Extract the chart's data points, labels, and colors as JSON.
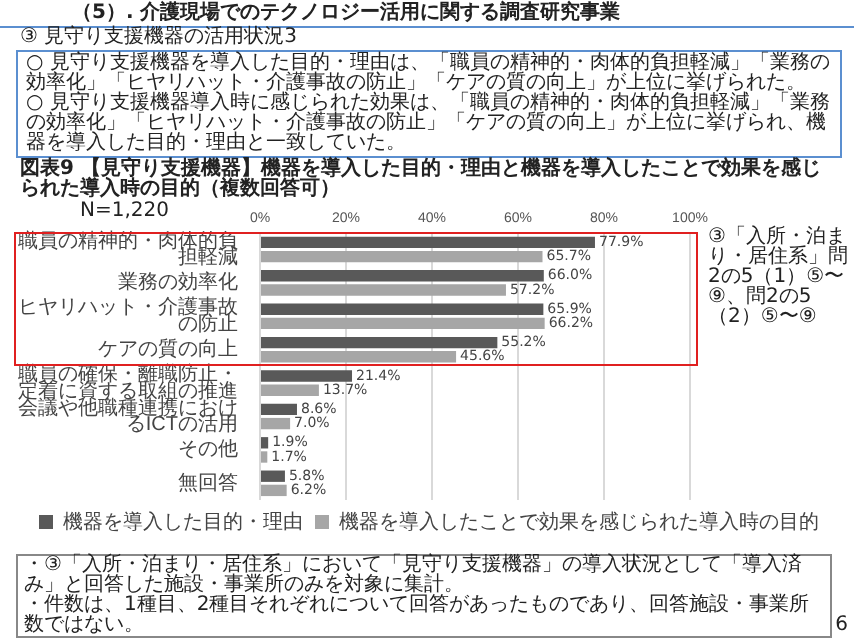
{
  "chart_data": {
    "type": "bar",
    "orientation": "horizontal",
    "title": "図表9 【見守り支援機器】機器を導入した目的・理由と機器を導入したことで効果を感じられた導入時の目的（複数回答可）",
    "annotations": [
      "（5）. 介護現場でのテクノロジー活用に関する調査研究事業",
      "③ 見守り支援機器の活用状況3",
      "○ 見守り支援機器を導入した目的・理由は、「職員の精神的・肉体的負担軽減」「業務の効率化」「ヒヤリハット・介護事故の防止」「ケアの質の向上」が上位に挙げられた。",
      "○ 見守り支援機器導入時に感じられた効果は、「職員の精神的・肉体的負担軽減」「業務の効率化」「ヒヤリハット・介護事故の防止」「ケアの質の向上」が上位に挙げられ、機器を導入した目的・理由と一致していた。",
      "N=1,220",
      "③「入所・泊まり・居住系」問2の5（1）⑤〜⑨、問2の5（2）⑤〜⑨",
      "・③「入所・泊まり・居住系」において「見守り支援機器」の導入状況として「導入済み」と回答した施設・事業所のみを対象に集計。",
      "・件数は、1種目、2種目それぞれについて回答があったものであり、回答施設・事業所数ではない。",
      "6"
    ],
    "categories": [
      "職員の精神的・肉体的負担軽減",
      "業務の効率化",
      "ヒヤリハット・介護事故の防止",
      "ケアの質の向上",
      "職員の確保・離職防止・定着に資する取組の推進",
      "会議や他職種連携におけるICTの活用",
      "その他",
      "無回答"
    ],
    "series": [
      {
        "name": "機器を導入した目的・理由",
        "color": "#595959",
        "values": [
          77.9,
          66.0,
          65.9,
          55.2,
          21.4,
          8.6,
          1.9,
          5.8
        ],
        "value_labels": [
          "77.9%",
          "66.0%",
          "65.9%",
          "55.2%",
          "21.4%",
          "8.6%",
          "1.9%",
          "5.8%"
        ]
      },
      {
        "name": "機器を導入したことで効果を感じられた導入時の目的",
        "color": "#a6a6a6",
        "values": [
          65.7,
          57.2,
          66.2,
          45.6,
          13.7,
          7.0,
          1.7,
          6.2
        ],
        "value_labels": [
          "65.7%",
          "57.2%",
          "66.2%",
          "45.6%",
          "13.7%",
          "7.0%",
          "1.7%",
          "6.2%"
        ]
      }
    ],
    "xlim": [
      0,
      100
    ],
    "xticks": [
      {
        "value": 0,
        "label": "0%"
      },
      {
        "value": 20,
        "label": "20%"
      },
      {
        "value": 40,
        "label": "40%"
      },
      {
        "value": 60,
        "label": "60%"
      },
      {
        "value": 80,
        "label": "80%"
      },
      {
        "value": 100,
        "label": "100%"
      }
    ],
    "grid": "x",
    "legend": "bottom"
  }
}
